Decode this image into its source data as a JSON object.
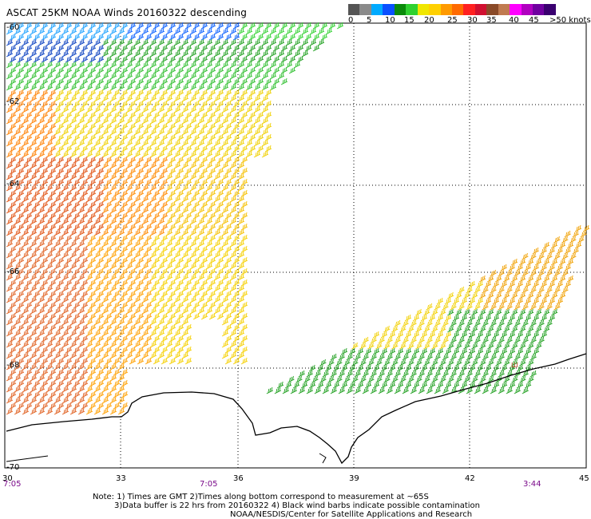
{
  "title": "ASCAT 25KM NOAA Winds 20160322 descending",
  "legend": {
    "colors": [
      "#555555",
      "#8a8a8a",
      "#00aaff",
      "#0a50ff",
      "#0a8a0a",
      "#2fd12f",
      "#f0e600",
      "#ffd000",
      "#ff9a00",
      "#ff6a00",
      "#ff2020",
      "#d01030",
      "#8a4a28",
      "#c07a50",
      "#ff00ff",
      "#b000c0",
      "#7000a0",
      "#3a0070"
    ],
    "labels": [
      "0",
      "5",
      "10",
      "15",
      "20",
      "25",
      "30",
      "35",
      "40",
      "45",
      ">50 knots"
    ]
  },
  "map": {
    "lat_labels": [
      "-60",
      "-62",
      "-64",
      "-66",
      "-68",
      "-70"
    ],
    "lon_labels": [
      "30",
      "33",
      "36",
      "39",
      "42",
      "45"
    ],
    "times": [
      "7:05",
      "7:05",
      "3:44"
    ],
    "marker": "Ш"
  },
  "note": {
    "line1": "Note: 1) Times are GMT 2)Times along bottom correspond to measurement at ~65S",
    "line2": "3)Data buffer is 22 hrs from 20160322 4) Black wind barbs indicate possible contamination",
    "line3": "NOAA/NESDIS/Center for Satellite Applications and Research"
  }
}
